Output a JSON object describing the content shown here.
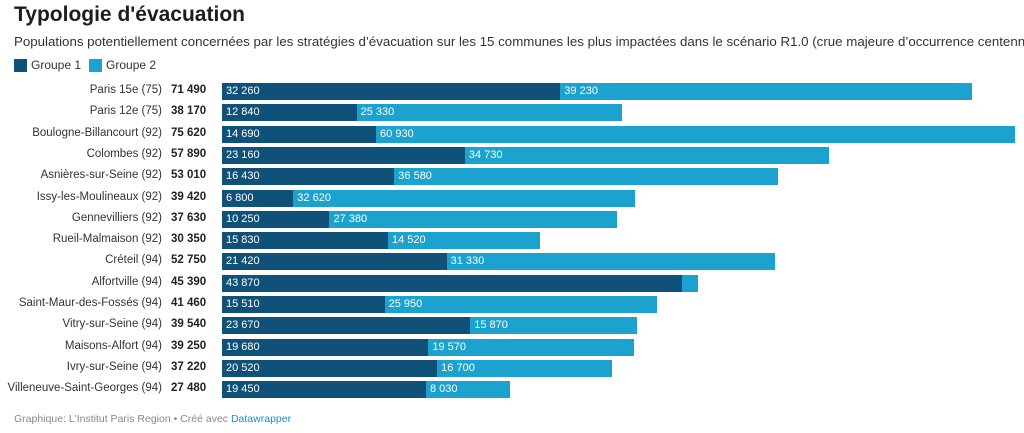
{
  "title": "Typologie d'évacuation",
  "subtitle": "Populations potentiellement concernées par les stratégies d’évacuation sur les 15 communes les plus impactées dans le scénario R1.0 (crue majeure d’occurrence centennale)",
  "footer": {
    "text": "Graphique: L'Institut Paris Region • Créé avec ",
    "link": "Datawrapper"
  },
  "chart_data": {
    "type": "stacked-bar-horizontal",
    "colors": {
      "Groupe 1": "#0f5179",
      "Groupe 2": "#1ba2cf"
    },
    "legend_position": "top-left",
    "categories": [
      "Paris 15e (75)",
      "Paris 12e (75)",
      "Boulogne-Billancourt (92)",
      "Colombes (92)",
      "Asnières-sur-Seine (92)",
      "Issy-les-Moulineaux (92)",
      "Gennevilliers (92)",
      "Rueil-Malmaison (92)",
      "Créteil (94)",
      "Alfortville (94)",
      "Saint-Maur-des-Fossés (94)",
      "Vitry-sur-Seine (94)",
      "Maisons-Alfort (94)",
      "Ivry-sur-Seine (94)",
      "Villeneuve-Saint-Georges (94)"
    ],
    "totals": [
      "71 490",
      "38 170",
      "75 620",
      "57 890",
      "53 010",
      "39 420",
      "37 630",
      "30 350",
      "52 750",
      "45 390",
      "41 460",
      "39 540",
      "39 250",
      "37 220",
      "27 480"
    ],
    "series": [
      {
        "name": "Groupe 1",
        "values": [
          32260,
          12840,
          14690,
          23160,
          16430,
          6800,
          10250,
          15830,
          21420,
          43870,
          15510,
          23670,
          19680,
          20520,
          19450
        ]
      },
      {
        "name": "Groupe 2",
        "values": [
          39230,
          25330,
          60930,
          34730,
          36580,
          32620,
          27380,
          14520,
          31330,
          1520,
          25950,
          15870,
          19570,
          16700,
          8030
        ]
      }
    ],
    "hidden_labels": {
      "Groupe 2": [
        9
      ]
    }
  }
}
